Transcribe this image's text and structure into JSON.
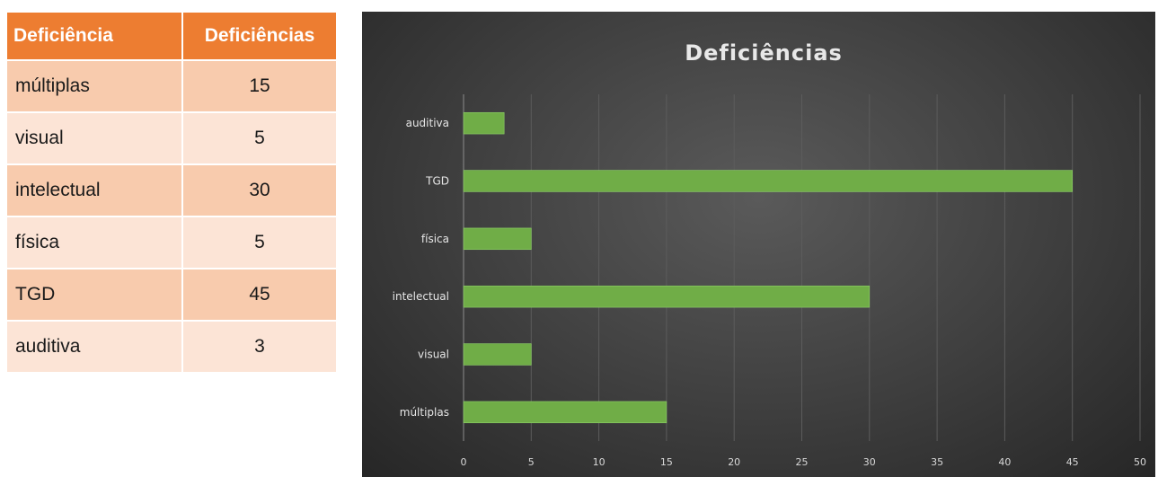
{
  "table": {
    "headers": [
      "Deficiência",
      "Deficiências"
    ],
    "rows": [
      {
        "label": "múltiplas",
        "value": "15"
      },
      {
        "label": "visual",
        "value": "5"
      },
      {
        "label": "intelectual",
        "value": "30"
      },
      {
        "label": "física",
        "value": "5"
      },
      {
        "label": "TGD",
        "value": "45"
      },
      {
        "label": "auditiva",
        "value": "3"
      }
    ],
    "colors": {
      "header": "#ed7d31",
      "row_odd": "#f8cbad",
      "row_even": "#fce4d6"
    }
  },
  "chart_data": {
    "type": "bar",
    "orientation": "horizontal",
    "title": "Deficiências",
    "categories": [
      "múltiplas",
      "visual",
      "intelectual",
      "física",
      "TGD",
      "auditiva"
    ],
    "values": [
      15,
      5,
      30,
      5,
      45,
      3
    ],
    "xlim": [
      0,
      50
    ],
    "xticks": [
      0,
      5,
      10,
      15,
      20,
      25,
      30,
      35,
      40,
      45,
      50
    ],
    "grid": true,
    "legend": "none",
    "bar_color": "#70ad47",
    "background": "#404040"
  }
}
